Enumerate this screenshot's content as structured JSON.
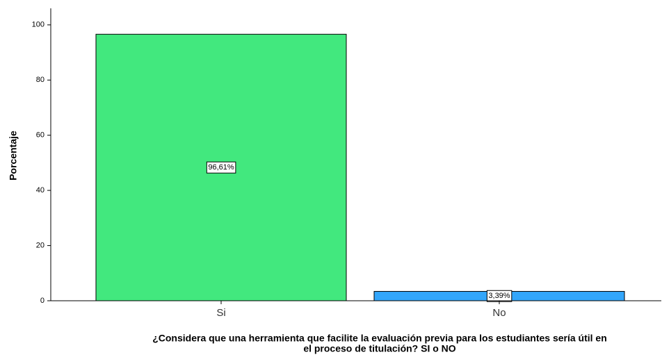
{
  "chart_data": {
    "type": "bar",
    "ylabel": "Porcentaje",
    "xlabel": [
      "¿Considera que una herramienta que facilite la evaluación previa para los estudiantes sería útil en",
      "el proceso de titulación? SI o NO"
    ],
    "categories": [
      "Si",
      "No"
    ],
    "values": [
      96.61,
      3.39
    ],
    "value_labels": [
      "96,61%",
      "3,39%"
    ],
    "colors": [
      "#42e87e",
      "#33a6fb"
    ],
    "ylim": [
      0,
      106
    ],
    "yticks": [
      0,
      20,
      40,
      60,
      80,
      100
    ]
  }
}
